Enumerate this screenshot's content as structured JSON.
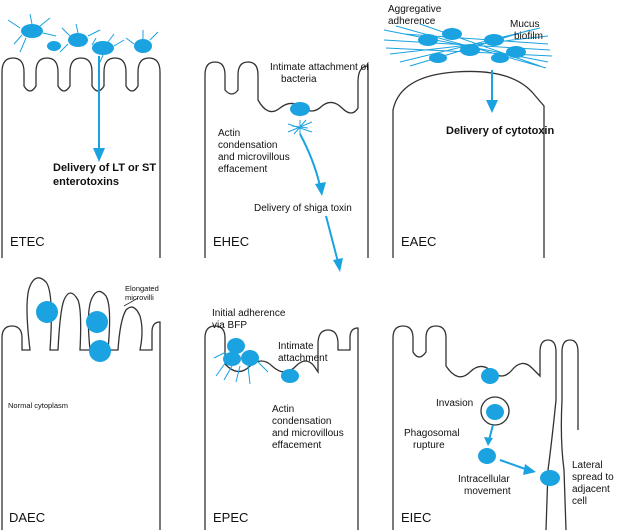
{
  "colors": {
    "bacteria": "#1aa3e0",
    "outline": "#333333"
  },
  "panels": {
    "etec": {
      "name": "ETEC",
      "label_delivery_1": "Delivery of LT or ST",
      "label_delivery_2": "enterotoxins"
    },
    "ehec": {
      "name": "EHEC",
      "label_attach_1": "Intimate attachment of",
      "label_attach_2": "bacteria",
      "label_actin_1": "Actin",
      "label_actin_2": "condensation",
      "label_actin_3": "and microvillous",
      "label_actin_4": "effacement",
      "label_toxin": "Delivery of shiga toxin"
    },
    "eaec": {
      "name": "EAEC",
      "label_aggr_1": "Aggregative",
      "label_aggr_2": "adherence",
      "label_mucus_1": "Mucus",
      "label_mucus_2": "biofilm",
      "label_cytotoxin": "Delivery of cytotoxin"
    },
    "daec": {
      "name": "DAEC",
      "label_microvilli_1": "Elongated",
      "label_microvilli_2": "microvilli",
      "label_cytoplasm": "Normal cytoplasm"
    },
    "epec": {
      "name": "EPEC",
      "label_initial_1": "Initial adherence",
      "label_initial_2": "via BFP",
      "label_intimate_1": "Intimate",
      "label_intimate_2": "attachment",
      "label_actin_1": "Actin",
      "label_actin_2": "condensation",
      "label_actin_3": "and microvillous",
      "label_actin_4": "effacement"
    },
    "eiec": {
      "name": "EIEC",
      "label_invasion": "Invasion",
      "label_phago_1": "Phagosomal",
      "label_phago_2": "rupture",
      "label_move_1": "Intracellular",
      "label_move_2": "movement",
      "label_lateral_1": "Lateral",
      "label_lateral_2": "spread to",
      "label_lateral_3": "adjacent",
      "label_lateral_4": "cell"
    }
  }
}
